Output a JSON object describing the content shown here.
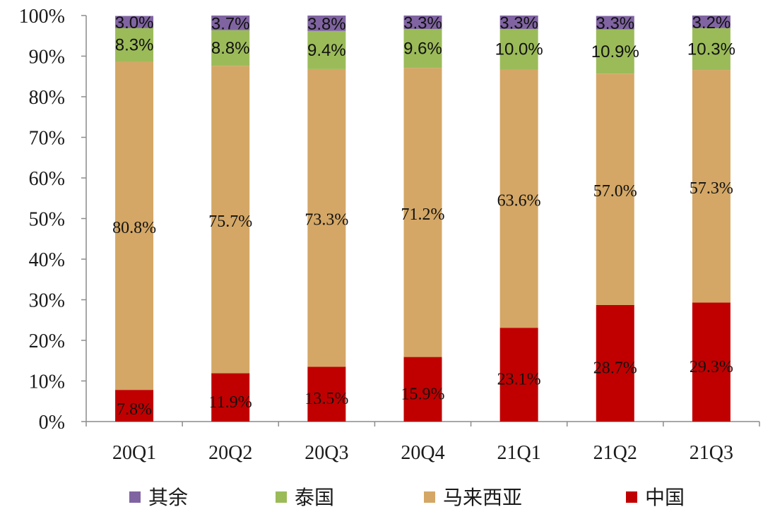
{
  "chart_data": {
    "type": "bar",
    "stacked": true,
    "categories": [
      "20Q1",
      "20Q2",
      "20Q3",
      "20Q4",
      "21Q1",
      "21Q2",
      "21Q3"
    ],
    "series": [
      {
        "name": "中国",
        "color": "#C00000",
        "values": [
          7.8,
          11.9,
          13.5,
          15.9,
          23.1,
          28.7,
          29.3
        ],
        "labels": [
          "7.8%",
          "11.9%",
          "13.5%",
          "15.9%",
          "23.1%",
          "28.7%",
          "29.3%"
        ]
      },
      {
        "name": "马来西亚",
        "color": "#D4A766",
        "values": [
          80.8,
          75.7,
          73.3,
          71.2,
          63.6,
          57.0,
          57.3
        ],
        "labels": [
          "80.8%",
          "75.7%",
          "73.3%",
          "71.2%",
          "63.6%",
          "57.0%",
          "57.3%"
        ]
      },
      {
        "name": "泰国",
        "color": "#9BBB59",
        "values": [
          8.3,
          8.8,
          9.4,
          9.6,
          10.0,
          10.9,
          10.3
        ],
        "labels": [
          "8.3%",
          "8.8%",
          "9.4%",
          "9.6%",
          "10.0%",
          "10.9%",
          "10.3%"
        ]
      },
      {
        "name": "其余",
        "color": "#8064A2",
        "values": [
          3.0,
          3.7,
          3.8,
          3.3,
          3.3,
          3.3,
          3.2
        ],
        "labels": [
          "3.0%",
          "3.7%",
          "3.8%",
          "3.3%",
          "3.3%",
          "3.3%",
          "3.2%"
        ]
      }
    ],
    "ylim": [
      0,
      100
    ],
    "yticks": [
      "0%",
      "10%",
      "20%",
      "30%",
      "40%",
      "50%",
      "60%",
      "70%",
      "80%",
      "90%",
      "100%"
    ],
    "legend": {
      "placement": "bottom",
      "order": [
        "其余",
        "泰国",
        "马来西亚",
        "中国"
      ]
    },
    "grid": false,
    "title": "",
    "xlabel": "",
    "ylabel": ""
  }
}
